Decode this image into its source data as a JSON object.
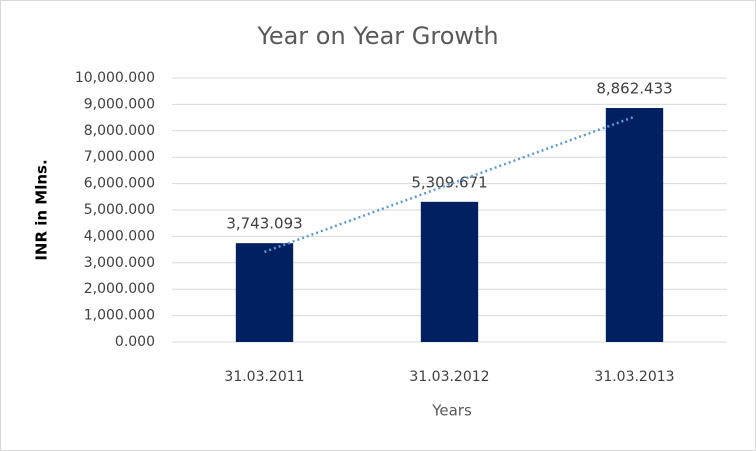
{
  "chart_data": {
    "type": "bar",
    "title": "Year on Year Growth",
    "x_label": "Years",
    "y_label": "INR in Mlns.",
    "categories": [
      "31.03.2011",
      "31.03.2012",
      "31.03.2013"
    ],
    "values": [
      3743.093,
      5309.671,
      8862.433
    ],
    "value_labels": [
      "3,743.093",
      "5,309.671",
      "8,862.433"
    ],
    "color": "#002060",
    "trendline": {
      "type": "linear",
      "color": "#5b9bd5"
    },
    "ylim": [
      0,
      10000
    ],
    "yticks": [
      {
        "value": 0,
        "label": "0.000"
      },
      {
        "value": 1000,
        "label": "1,000.000"
      },
      {
        "value": 2000,
        "label": "2,000.000"
      },
      {
        "value": 3000,
        "label": "3,000.000"
      },
      {
        "value": 4000,
        "label": "4,000.000"
      },
      {
        "value": 5000,
        "label": "5,000.000"
      },
      {
        "value": 6000,
        "label": "6,000.000"
      },
      {
        "value": 7000,
        "label": "7,000.000"
      },
      {
        "value": 8000,
        "label": "8,000.000"
      },
      {
        "value": 9000,
        "label": "9,000.000"
      },
      {
        "value": 10000,
        "label": "10,000.000"
      }
    ],
    "grid": true
  }
}
